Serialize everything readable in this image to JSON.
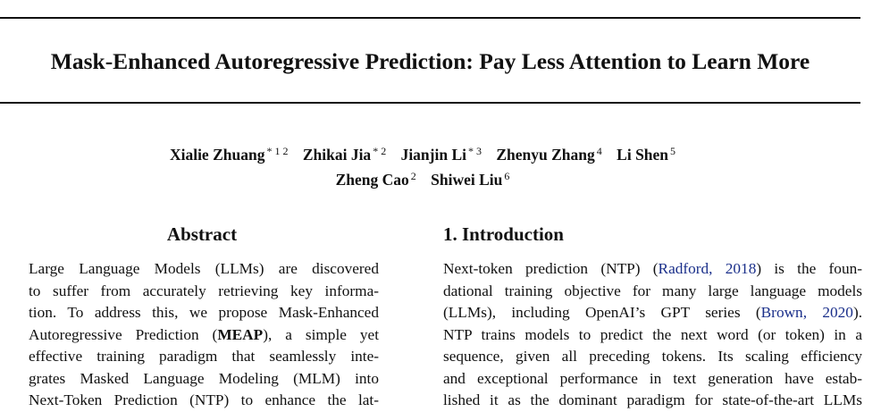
{
  "paper": {
    "title": "Mask-Enhanced Autoregressive Prediction: Pay Less Attention to Learn More",
    "authors_line1": [
      {
        "name": "Xialie Zhuang",
        "affil": "* 1 2"
      },
      {
        "name": "Zhikai Jia",
        "affil": "* 2"
      },
      {
        "name": "Jianjin Li",
        "affil": "* 3"
      },
      {
        "name": "Zhenyu Zhang",
        "affil": "4"
      },
      {
        "name": "Li Shen",
        "affil": "5"
      }
    ],
    "authors_line2": [
      {
        "name": "Zheng Cao",
        "affil": "2"
      },
      {
        "name": "Shiwei Liu",
        "affil": "6"
      }
    ]
  },
  "abstract": {
    "heading": "Abstract",
    "lines": {
      "l1": "Large Language Models (LLMs) are discovered",
      "l2": "to suffer from accurately retrieving key informa-",
      "l3": "tion. To address this, we propose Mask-Enhanced",
      "l4_pre": "Autoregressive Prediction (",
      "l4_bold": "MEAP",
      "l4_post": "), a simple yet",
      "l5": "effective training paradigm that seamlessly inte-",
      "l6": "grates Masked Language Modeling (MLM) into",
      "l7": "Next-Token Prediction (NTP) to enhance the lat-"
    }
  },
  "introduction": {
    "heading": "1. Introduction",
    "lines": {
      "l1_pre": "Next-token prediction (NTP) (",
      "l1_cite": "Radford, 2018",
      "l1_post": ") is the foun-",
      "l2": "dational training objective for many large language models",
      "l3_pre": "(LLMs), including OpenAI’s GPT series (",
      "l3_cite": "Brown, 2020",
      "l3_post": ").",
      "l4": "NTP trains models to predict the next word (or token) in a",
      "l5": "sequence, given all preceding tokens. Its scaling efficiency",
      "l6": "and exceptional performance in text generation have estab-",
      "l7": "lished it as the dominant paradigm for state-of-the-art LLMs"
    }
  },
  "colors": {
    "text": "#111111",
    "citation_link": "#1a2f8a"
  }
}
